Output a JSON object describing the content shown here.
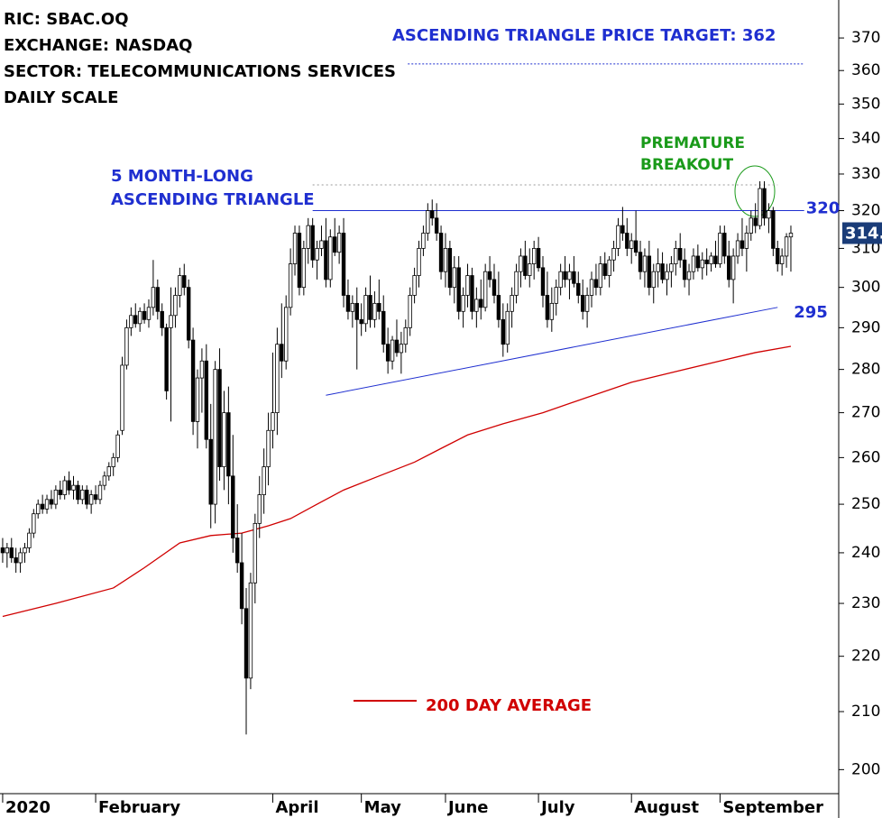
{
  "chart_data": {
    "type": "candlestick",
    "header": [
      "RIC: SBAC.OQ",
      "EXCHANGE: NASDAQ",
      "SECTOR: TELECOMMUNICATIONS SERVICES",
      "DAILY SCALE"
    ],
    "triangle_label": [
      "5 MONTH-LONG",
      "ASCENDING TRIANGLE"
    ],
    "breakout_label": [
      "PREMATURE",
      "BREAKOUT"
    ],
    "target": {
      "label": "ASCENDING TRIANGLE PRICE TARGET: 362",
      "value": 362,
      "x": [
        91.5,
        181
      ]
    },
    "resistance": {
      "value": 320,
      "x": [
        70,
        181
      ]
    },
    "breakout_level": {
      "value": 327,
      "x": [
        70,
        175
      ]
    },
    "trendline": {
      "x": [
        73,
        175
      ],
      "values": [
        274,
        295
      ]
    },
    "last_price": {
      "value": 314,
      "label": "314."
    },
    "log_scale": true,
    "up_color": "#ffffff",
    "down_color": "#000000",
    "xlim": [
      -0.6,
      188.8
    ],
    "xticks": [
      {
        "value": 0,
        "label": "2020"
      },
      {
        "value": 21,
        "label": "February"
      },
      {
        "value": 61,
        "label": "April"
      },
      {
        "value": 81,
        "label": "May"
      },
      {
        "value": 100,
        "label": "June"
      },
      {
        "value": 121,
        "label": "July"
      },
      {
        "value": 142,
        "label": "August"
      },
      {
        "value": 162,
        "label": "September"
      }
    ],
    "ylim": [
      196,
      382
    ],
    "yticks": [
      200,
      210,
      220,
      230,
      240,
      250,
      260,
      270,
      280,
      290,
      300,
      310,
      320,
      330,
      340,
      350,
      360,
      370
    ],
    "ma200": {
      "name": "200 DAY AVERAGE",
      "color": "#d00000",
      "x": [
        0,
        12,
        25,
        32,
        40,
        47,
        54,
        60,
        65,
        71,
        77,
        85,
        93,
        99,
        105,
        113,
        122,
        132,
        142,
        152,
        162,
        170,
        178
      ],
      "values": [
        227.5,
        230,
        233,
        237,
        242,
        243.5,
        244,
        245.5,
        247,
        250,
        253,
        256,
        259,
        262,
        265,
        267.5,
        270,
        273.5,
        277,
        279.5,
        282,
        284,
        285.5
      ]
    },
    "ohlc": [
      [
        241,
        243,
        238,
        240
      ],
      [
        240,
        242,
        237,
        241
      ],
      [
        241,
        243,
        238,
        239
      ],
      [
        239,
        241,
        236,
        238
      ],
      [
        238,
        241,
        236,
        240
      ],
      [
        240,
        242,
        238,
        241
      ],
      [
        241,
        245,
        240,
        244
      ],
      [
        244,
        249,
        243,
        248
      ],
      [
        248,
        251,
        247,
        250
      ],
      [
        250,
        252,
        248,
        249
      ],
      [
        249,
        252,
        248,
        251
      ],
      [
        251,
        253,
        249,
        250
      ],
      [
        250,
        254,
        249,
        253
      ],
      [
        253,
        255,
        251,
        252
      ],
      [
        252,
        256,
        251,
        255
      ],
      [
        255,
        257,
        252,
        253
      ],
      [
        253,
        256,
        251,
        254
      ],
      [
        254,
        255,
        250,
        251
      ],
      [
        251,
        254,
        250,
        253
      ],
      [
        253,
        254,
        249,
        250
      ],
      [
        250,
        253,
        248,
        252
      ],
      [
        252,
        254,
        250,
        251
      ],
      [
        251,
        255,
        250,
        254
      ],
      [
        254,
        257,
        253,
        256
      ],
      [
        256,
        259,
        255,
        258
      ],
      [
        258,
        261,
        256,
        260
      ],
      [
        260,
        266,
        259,
        265
      ],
      [
        266,
        283,
        265,
        281
      ],
      [
        281,
        292,
        280,
        290
      ],
      [
        290,
        295,
        288,
        293
      ],
      [
        293,
        296,
        290,
        291
      ],
      [
        291,
        295,
        289,
        294
      ],
      [
        294,
        296,
        291,
        292
      ],
      [
        292,
        297,
        290,
        295
      ],
      [
        295,
        307,
        293,
        300
      ],
      [
        300,
        302,
        292,
        294
      ],
      [
        294,
        296,
        288,
        290
      ],
      [
        290,
        291,
        273,
        275
      ],
      [
        290,
        300,
        268,
        293
      ],
      [
        293,
        300,
        290,
        298
      ],
      [
        298,
        305,
        295,
        303
      ],
      [
        303,
        306,
        298,
        300
      ],
      [
        300,
        302,
        285,
        287
      ],
      [
        287,
        290,
        265,
        268
      ],
      [
        268,
        280,
        262,
        278
      ],
      [
        278,
        285,
        270,
        282
      ],
      [
        282,
        286,
        262,
        264
      ],
      [
        264,
        272,
        245,
        250
      ],
      [
        250,
        282,
        246,
        280
      ],
      [
        280,
        285,
        255,
        258
      ],
      [
        258,
        275,
        253,
        270
      ],
      [
        270,
        276,
        250,
        256
      ],
      [
        256,
        265,
        240,
        243
      ],
      [
        243,
        250,
        236,
        238
      ],
      [
        238,
        244,
        226,
        229
      ],
      [
        229,
        233,
        206,
        216
      ],
      [
        216,
        236,
        214,
        234
      ],
      [
        234,
        248,
        230,
        246
      ],
      [
        246,
        256,
        243,
        252
      ],
      [
        252,
        262,
        248,
        258
      ],
      [
        258,
        270,
        254,
        266
      ],
      [
        266,
        284,
        262,
        270
      ],
      [
        270,
        290,
        265,
        286
      ],
      [
        286,
        296,
        278,
        282
      ],
      [
        282,
        298,
        280,
        295
      ],
      [
        295,
        310,
        293,
        306
      ],
      [
        306,
        316,
        303,
        314
      ],
      [
        314,
        316,
        298,
        300
      ],
      [
        300,
        312,
        298,
        310
      ],
      [
        310,
        318,
        306,
        316
      ],
      [
        316,
        318,
        305,
        307
      ],
      [
        307,
        312,
        302,
        310
      ],
      [
        310,
        316,
        308,
        312
      ],
      [
        312,
        318,
        300,
        302
      ],
      [
        302,
        315,
        300,
        313
      ],
      [
        313,
        318,
        308,
        309
      ],
      [
        309,
        316,
        306,
        314
      ],
      [
        314,
        318,
        295,
        298
      ],
      [
        298,
        302,
        292,
        294
      ],
      [
        294,
        298,
        290,
        296
      ],
      [
        296,
        300,
        280,
        292
      ],
      [
        292,
        296,
        288,
        291
      ],
      [
        291,
        300,
        289,
        298
      ],
      [
        298,
        303,
        290,
        292
      ],
      [
        292,
        299,
        290,
        296
      ],
      [
        296,
        302,
        292,
        294
      ],
      [
        294,
        298,
        284,
        286
      ],
      [
        286,
        290,
        279,
        282
      ],
      [
        282,
        288,
        280,
        287
      ],
      [
        287,
        292,
        283,
        284
      ],
      [
        284,
        289,
        279,
        286
      ],
      [
        286,
        292,
        284,
        290
      ],
      [
        290,
        300,
        288,
        298
      ],
      [
        298,
        305,
        296,
        303
      ],
      [
        303,
        312,
        300,
        310
      ],
      [
        310,
        316,
        308,
        314
      ],
      [
        314,
        322,
        312,
        320
      ],
      [
        320,
        323,
        316,
        318
      ],
      [
        318,
        322,
        312,
        314
      ],
      [
        314,
        316,
        302,
        304
      ],
      [
        304,
        314,
        300,
        310
      ],
      [
        310,
        312,
        298,
        300
      ],
      [
        300,
        308,
        296,
        305
      ],
      [
        305,
        308,
        292,
        294
      ],
      [
        294,
        300,
        290,
        298
      ],
      [
        298,
        306,
        295,
        303
      ],
      [
        303,
        305,
        292,
        294
      ],
      [
        294,
        300,
        290,
        297
      ],
      [
        297,
        302,
        292,
        295
      ],
      [
        295,
        306,
        294,
        304
      ],
      [
        304,
        308,
        300,
        302
      ],
      [
        302,
        306,
        296,
        298
      ],
      [
        298,
        304,
        290,
        292
      ],
      [
        292,
        296,
        283,
        286
      ],
      [
        286,
        296,
        284,
        294
      ],
      [
        294,
        300,
        290,
        298
      ],
      [
        298,
        306,
        296,
        304
      ],
      [
        304,
        310,
        300,
        308
      ],
      [
        308,
        312,
        302,
        303
      ],
      [
        303,
        310,
        300,
        306
      ],
      [
        306,
        312,
        302,
        310
      ],
      [
        310,
        313,
        304,
        305
      ],
      [
        305,
        308,
        295,
        298
      ],
      [
        298,
        304,
        290,
        292
      ],
      [
        292,
        300,
        289,
        296
      ],
      [
        296,
        302,
        293,
        300
      ],
      [
        300,
        306,
        298,
        304
      ],
      [
        304,
        308,
        300,
        302
      ],
      [
        302,
        306,
        297,
        304
      ],
      [
        304,
        308,
        300,
        301
      ],
      [
        301,
        304,
        296,
        298
      ],
      [
        298,
        302,
        292,
        294
      ],
      [
        294,
        300,
        290,
        298
      ],
      [
        298,
        304,
        295,
        302
      ],
      [
        302,
        306,
        298,
        300
      ],
      [
        300,
        308,
        298,
        306
      ],
      [
        306,
        309,
        302,
        303
      ],
      [
        303,
        308,
        300,
        307
      ],
      [
        307,
        312,
        304,
        310
      ],
      [
        310,
        318,
        308,
        316
      ],
      [
        316,
        321,
        312,
        314
      ],
      [
        314,
        318,
        308,
        310
      ],
      [
        310,
        314,
        306,
        312
      ],
      [
        312,
        320,
        308,
        309
      ],
      [
        309,
        312,
        302,
        304
      ],
      [
        304,
        310,
        300,
        308
      ],
      [
        308,
        312,
        298,
        300
      ],
      [
        300,
        306,
        296,
        304
      ],
      [
        304,
        310,
        300,
        306
      ],
      [
        306,
        309,
        301,
        302
      ],
      [
        302,
        306,
        298,
        304
      ],
      [
        304,
        308,
        300,
        306
      ],
      [
        306,
        312,
        303,
        310
      ],
      [
        310,
        314,
        305,
        307
      ],
      [
        307,
        310,
        300,
        302
      ],
      [
        302,
        306,
        298,
        304
      ],
      [
        304,
        310,
        302,
        308
      ],
      [
        308,
        311,
        304,
        305
      ],
      [
        305,
        309,
        302,
        307
      ],
      [
        307,
        310,
        303,
        306
      ],
      [
        306,
        309,
        304,
        308
      ],
      [
        308,
        312,
        305,
        306
      ],
      [
        306,
        316,
        305,
        314
      ],
      [
        314,
        316,
        306,
        308
      ],
      [
        308,
        312,
        300,
        302
      ],
      [
        302,
        310,
        296,
        308
      ],
      [
        308,
        314,
        306,
        312
      ],
      [
        312,
        318,
        308,
        310
      ],
      [
        310,
        316,
        304,
        314
      ],
      [
        314,
        320,
        312,
        318
      ],
      [
        318,
        322,
        314,
        316
      ],
      [
        316,
        328,
        315,
        326
      ],
      [
        326,
        328,
        316,
        318
      ],
      [
        318,
        322,
        314,
        320
      ],
      [
        320,
        321,
        308,
        310
      ],
      [
        310,
        312,
        304,
        306
      ],
      [
        306,
        310,
        303,
        308
      ],
      [
        308,
        314,
        305,
        313
      ],
      [
        313,
        316,
        304,
        314
      ]
    ]
  }
}
